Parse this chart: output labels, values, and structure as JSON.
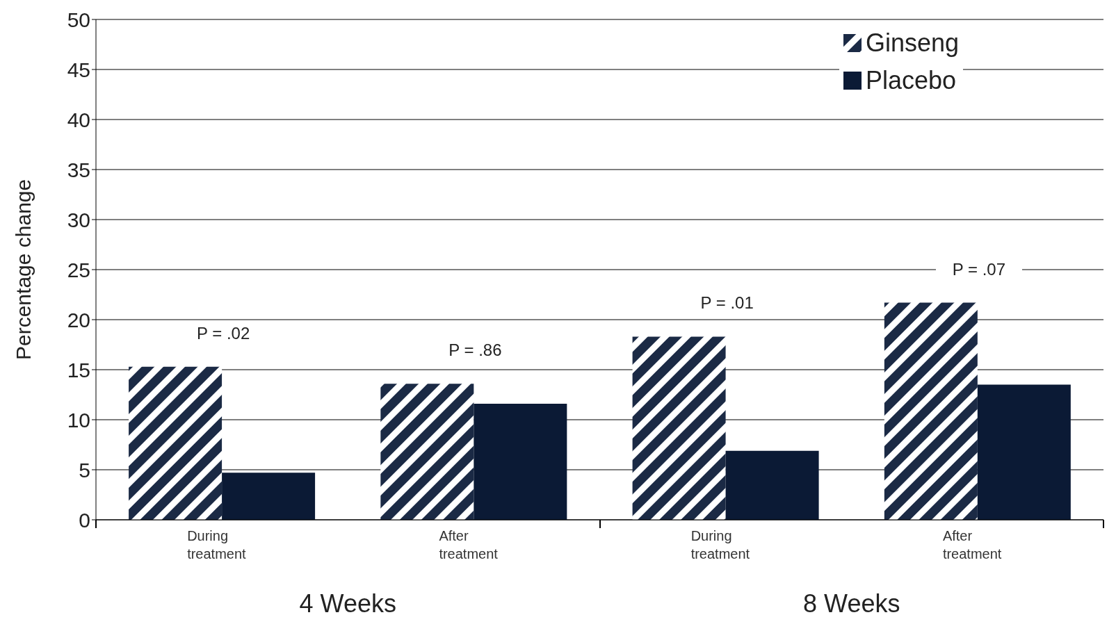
{
  "chart_data": {
    "type": "bar",
    "ylabel": "Percentage change",
    "categories": [
      "During treatment",
      "After treatment",
      "During treatment",
      "After treatment"
    ],
    "series": [
      {
        "name": "Ginseng",
        "color": "#1b2a45",
        "values": [
          15.3,
          13.6,
          18.3,
          21.7
        ]
      },
      {
        "name": "Placebo",
        "color": "#0b1a35",
        "values": [
          4.7,
          11.6,
          6.9,
          13.5
        ]
      }
    ],
    "ylim": [
      0,
      50
    ],
    "yticks": [
      0,
      5,
      10,
      15,
      20,
      25,
      30,
      35,
      40,
      45,
      50
    ],
    "grid": "y",
    "legend": "top right",
    "annotations": [
      "P = .02",
      "P = .86",
      "P = .01",
      "P = .07",
      "4 Weeks",
      "8 Weeks"
    ]
  }
}
